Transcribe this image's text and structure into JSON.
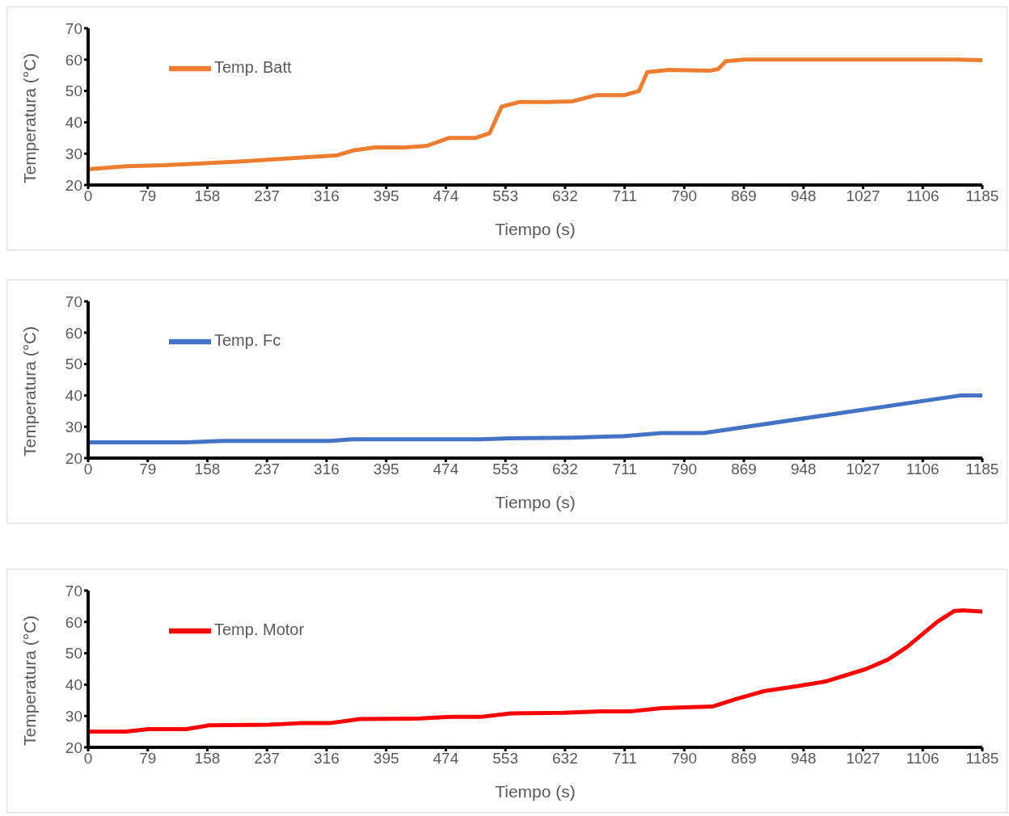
{
  "chart_data": [
    {
      "type": "line",
      "xlabel": "Tiempo (s)",
      "ylabel": "Temperatura (°C)",
      "xlim": [
        0,
        1185
      ],
      "xticks": [
        0,
        79,
        158,
        237,
        316,
        395,
        474,
        553,
        632,
        711,
        790,
        869,
        948,
        1027,
        1106,
        1185
      ],
      "ylim": [
        20,
        70
      ],
      "yticks": [
        20,
        30,
        40,
        50,
        60,
        70
      ],
      "grid": false,
      "legend": "top left",
      "marker": "none",
      "series": [
        {
          "name": "Temp. Batt",
          "color": "#ed7d31",
          "x": [
            0,
            50,
            100,
            200,
            300,
            330,
            351,
            380,
            420,
            449,
            478,
            513,
            532,
            548,
            572,
            610,
            642,
            674,
            711,
            730,
            741,
            770,
            824,
            835,
            845,
            870,
            1150,
            1185
          ],
          "values": [
            25,
            26,
            26.3,
            27.5,
            29,
            29.5,
            31,
            32,
            32,
            32.5,
            35,
            35,
            36.5,
            45,
            46.5,
            46.5,
            46.7,
            48.7,
            48.7,
            50,
            56,
            56.7,
            56.5,
            57,
            59.5,
            60,
            60,
            59.8
          ]
        }
      ]
    },
    {
      "type": "line",
      "xlabel": "Tiempo (s)",
      "ylabel": "Temperatura (°C)",
      "xlim": [
        0,
        1185
      ],
      "xticks": [
        0,
        79,
        158,
        237,
        316,
        395,
        474,
        553,
        632,
        711,
        790,
        869,
        948,
        1027,
        1106,
        1185
      ],
      "ylim": [
        20,
        70
      ],
      "yticks": [
        20,
        30,
        40,
        50,
        60,
        70
      ],
      "grid": false,
      "legend": "top left",
      "marker": "none",
      "series": [
        {
          "name": "Temp. Fc",
          "color": "#4472c4",
          "x": [
            0,
            130,
            180,
            320,
            350,
            520,
            560,
            640,
            711,
            760,
            816,
            1157,
            1185
          ],
          "values": [
            25,
            25,
            25.5,
            25.5,
            26,
            26,
            26.3,
            26.5,
            27,
            28,
            28,
            40,
            40
          ]
        }
      ]
    },
    {
      "type": "line",
      "xlabel": "Tiempo (s)",
      "ylabel": "Temperatura (°C)",
      "xlim": [
        0,
        1185
      ],
      "xticks": [
        0,
        79,
        158,
        237,
        316,
        395,
        474,
        553,
        632,
        711,
        790,
        869,
        948,
        1027,
        1106,
        1185
      ],
      "ylim": [
        20,
        70
      ],
      "yticks": [
        20,
        30,
        40,
        50,
        60,
        70
      ],
      "grid": false,
      "legend": "top left",
      "marker": "none",
      "series": [
        {
          "name": "Temp. Motor",
          "color": "#ff0000",
          "x": [
            0,
            50,
            80,
            130,
            160,
            240,
            280,
            320,
            360,
            440,
            480,
            520,
            560,
            630,
            680,
            720,
            760,
            800,
            827,
            860,
            897,
            940,
            977,
            1031,
            1060,
            1085,
            1105,
            1125,
            1148,
            1160,
            1185
          ],
          "values": [
            25,
            25,
            25.8,
            25.8,
            27,
            27.2,
            27.7,
            27.7,
            29,
            29.2,
            29.7,
            29.7,
            30.8,
            31,
            31.5,
            31.5,
            32.5,
            32.8,
            33,
            35.5,
            38,
            39.5,
            41,
            45,
            48,
            52,
            56,
            60,
            63.5,
            63.7,
            63.3
          ]
        }
      ]
    }
  ]
}
